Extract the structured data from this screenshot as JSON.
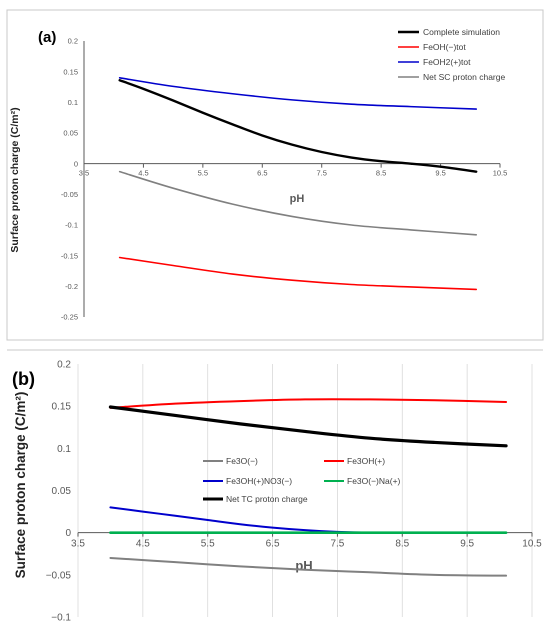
{
  "chart_data": [
    {
      "panel_label": "(a)",
      "type": "line",
      "xlabel": "pH",
      "ylabel": "Surface proton charge (C/m²)",
      "xlim": [
        3.5,
        10.5
      ],
      "ylim": [
        -0.25,
        0.2
      ],
      "x_ticks": [
        3.5,
        4.5,
        5.5,
        6.5,
        7.5,
        8.5,
        9.5,
        10.5
      ],
      "x_tick_labels": [
        "3.5",
        "4.5",
        "5.5",
        "6.5",
        "7.5",
        "8.5",
        "9.5",
        "10.5"
      ],
      "y_ticks": [
        -0.25,
        -0.2,
        -0.15,
        -0.1,
        -0.05,
        0,
        0.05,
        0.1,
        0.15,
        0.2
      ],
      "y_tick_labels": [
        "-0.25",
        "-0.2",
        "-0.15",
        "-0.1",
        "-0.05",
        "0",
        "0.05",
        "0.1",
        "0.15",
        "0.2"
      ],
      "grid": false,
      "legend_position": "top-right",
      "series": [
        {
          "name": "Complete simulation",
          "color": "#000000",
          "x": [
            4.1,
            4.5,
            5.0,
            5.5,
            6.0,
            6.5,
            7.0,
            7.5,
            8.0,
            8.5,
            9.0,
            9.5,
            10.1
          ],
          "y": [
            0.136,
            0.122,
            0.103,
            0.083,
            0.064,
            0.046,
            0.031,
            0.019,
            0.01,
            0.004,
            0.0,
            -0.005,
            -0.013
          ]
        },
        {
          "name": "FeOH(−)tot",
          "color": "#ff0000",
          "x": [
            4.1,
            5.0,
            6.0,
            7.0,
            8.0,
            9.0,
            10.1
          ],
          "y": [
            -0.153,
            -0.166,
            -0.18,
            -0.19,
            -0.197,
            -0.201,
            -0.205
          ]
        },
        {
          "name": "FeOH2(+)tot",
          "color": "#0000cc",
          "x": [
            4.1,
            5.0,
            6.0,
            7.0,
            8.0,
            9.0,
            10.1
          ],
          "y": [
            0.14,
            0.126,
            0.114,
            0.104,
            0.097,
            0.093,
            0.089
          ]
        },
        {
          "name": "Net SC proton charge",
          "color": "#808080",
          "x": [
            4.1,
            5.0,
            6.0,
            7.0,
            8.0,
            9.0,
            10.1
          ],
          "y": [
            -0.013,
            -0.04,
            -0.066,
            -0.086,
            -0.1,
            -0.108,
            -0.116
          ]
        }
      ]
    },
    {
      "panel_label": "(b)",
      "type": "line",
      "xlabel": "pH",
      "ylabel": "Surface proton charge (C/m²)",
      "xlim": [
        3.5,
        10.5
      ],
      "ylim": [
        -0.1,
        0.2
      ],
      "x_ticks": [
        3.5,
        4.5,
        5.5,
        6.5,
        7.5,
        8.5,
        9.5,
        10.5
      ],
      "x_tick_labels": [
        "3.5",
        "4.5",
        "5.5",
        "6.5",
        "7.5",
        "8.5",
        "9.5",
        "10.5"
      ],
      "y_ticks": [
        -0.1,
        -0.05,
        0,
        0.05,
        0.1,
        0.15,
        0.2
      ],
      "y_tick_labels": [
        "−0.1",
        "−0.05",
        "0",
        "0.05",
        "0.1",
        "0.15",
        "0.2"
      ],
      "grid": true,
      "legend_position": "center",
      "series": [
        {
          "name": "Fe3O(−)",
          "color": "#808080",
          "x": [
            4.0,
            5.0,
            6.0,
            7.0,
            8.0,
            9.0,
            10.1
          ],
          "y": [
            -0.03,
            -0.035,
            -0.04,
            -0.044,
            -0.047,
            -0.05,
            -0.051
          ]
        },
        {
          "name": "Fe3OH(+)",
          "color": "#ff0000",
          "x": [
            4.0,
            5.0,
            6.0,
            7.0,
            8.0,
            9.0,
            10.1
          ],
          "y": [
            0.148,
            0.153,
            0.156,
            0.158,
            0.158,
            0.157,
            0.155
          ]
        },
        {
          "name": "Fe3OH(+)NO3(−)",
          "color": "#0000cc",
          "x": [
            4.0,
            4.5,
            5.0,
            5.5,
            6.0,
            6.5,
            7.0,
            7.5,
            8.0,
            8.5
          ],
          "y": [
            0.03,
            0.025,
            0.02,
            0.015,
            0.01,
            0.006,
            0.003,
            0.001,
            0.0,
            0.0
          ]
        },
        {
          "name": "Fe3O(−)Na(+)",
          "color": "#00b050",
          "x": [
            4.0,
            10.1
          ],
          "y": [
            0.0,
            0.0
          ]
        },
        {
          "name": "Net TC proton charge",
          "color": "#000000",
          "x": [
            4.0,
            5.0,
            6.0,
            7.0,
            8.0,
            9.0,
            10.1
          ],
          "y": [
            0.149,
            0.139,
            0.129,
            0.12,
            0.112,
            0.107,
            0.103
          ]
        }
      ]
    }
  ]
}
